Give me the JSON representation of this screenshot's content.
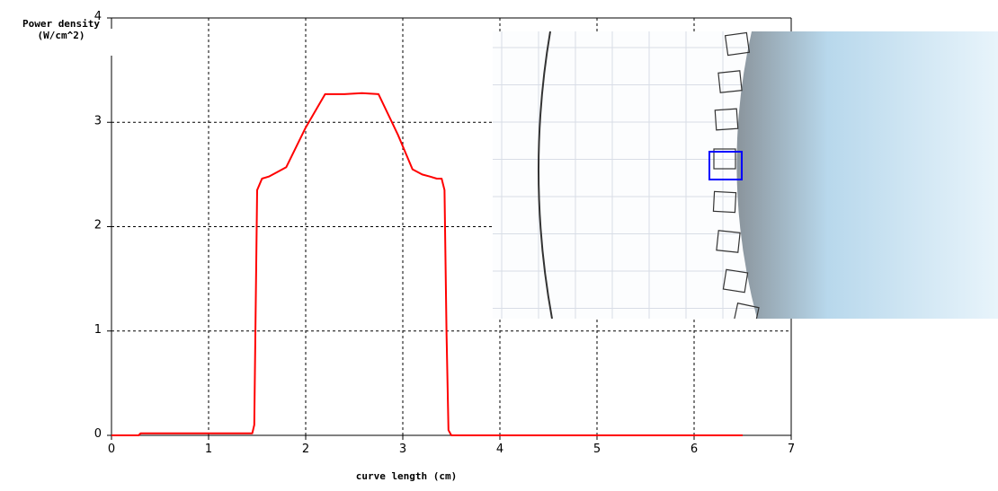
{
  "chart_data": {
    "type": "line",
    "ylabel_line1": "Power density",
    "ylabel_line2": "(W/cm^2)",
    "xlabel": "curve length (cm)",
    "xlim": [
      0,
      7
    ],
    "ylim": [
      0,
      4
    ],
    "xticks": [
      "0",
      "1",
      "2",
      "3",
      "4",
      "5",
      "6",
      "7"
    ],
    "yticks": [
      "0",
      "1",
      "2",
      "3",
      "4"
    ],
    "grid": true,
    "series": [
      {
        "color": "#ff0000",
        "x": [
          0,
          0.28,
          0.3,
          1.0,
          1.45,
          1.47,
          1.5,
          1.55,
          1.62,
          1.7,
          1.8,
          2.0,
          2.2,
          2.4,
          2.58,
          2.75,
          2.95,
          3.1,
          3.2,
          3.28,
          3.35,
          3.4,
          3.43,
          3.45,
          3.47,
          3.5,
          4.0,
          4.68,
          4.7,
          6.5
        ],
        "y": [
          0,
          0,
          0.02,
          0.02,
          0.02,
          0.1,
          2.35,
          2.46,
          2.48,
          2.52,
          2.57,
          2.95,
          3.27,
          3.27,
          3.28,
          3.27,
          2.88,
          2.55,
          2.5,
          2.48,
          2.46,
          2.46,
          2.35,
          1.0,
          0.05,
          0.0,
          0.0,
          0.0,
          0.0,
          0.0
        ]
      }
    ]
  },
  "inset": {
    "bg_color": "#fcfdfe",
    "grid_color": "#d8dde6",
    "highlight_color": "#0000ff",
    "part_gradient": [
      "#8a949c",
      "#b8d8ec",
      "#e8f4fb"
    ]
  }
}
